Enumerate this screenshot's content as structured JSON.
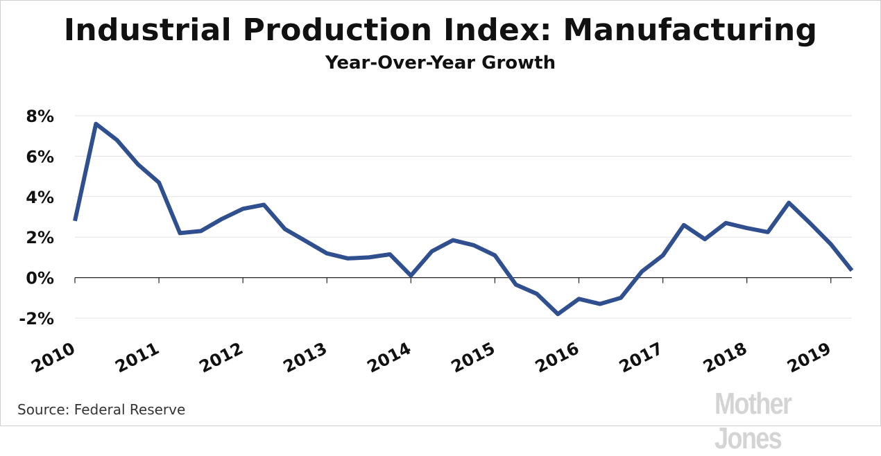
{
  "chart_data": {
    "type": "line",
    "title": "Industrial Production Index: Manufacturing",
    "subtitle": "Year-Over-Year Growth",
    "xlabel": "",
    "ylabel": "",
    "ylim": [
      -2,
      8
    ],
    "xlim": [
      2010.0,
      2019.25
    ],
    "y_ticks": [
      8,
      6,
      4,
      2,
      0,
      -2
    ],
    "y_tick_labels": [
      "8%",
      "6%",
      "4%",
      "2%",
      "0%",
      "-2%"
    ],
    "x_ticks": [
      2010,
      2011,
      2012,
      2013,
      2014,
      2015,
      2016,
      2017,
      2018,
      2019
    ],
    "x_tick_labels": [
      "2010",
      "2011",
      "2012",
      "2013",
      "2014",
      "2015",
      "2016",
      "2017",
      "2018",
      "2019"
    ],
    "grid": true,
    "series": [
      {
        "color": "#2f4f8f",
        "x": [
          2010.0,
          2010.25,
          2010.5,
          2010.75,
          2011.0,
          2011.25,
          2011.5,
          2011.75,
          2012.0,
          2012.25,
          2012.5,
          2012.75,
          2013.0,
          2013.25,
          2013.5,
          2013.75,
          2014.0,
          2014.25,
          2014.5,
          2014.75,
          2015.0,
          2015.25,
          2015.5,
          2015.75,
          2016.0,
          2016.25,
          2016.5,
          2016.75,
          2017.0,
          2017.25,
          2017.5,
          2017.75,
          2018.0,
          2018.25,
          2018.5,
          2018.75,
          2019.0,
          2019.25
        ],
        "y": [
          2.8,
          7.6,
          6.8,
          5.6,
          4.7,
          2.2,
          2.3,
          2.9,
          3.4,
          3.6,
          2.4,
          1.8,
          1.2,
          0.95,
          1.0,
          1.15,
          0.1,
          1.3,
          1.85,
          1.6,
          1.1,
          -0.35,
          -0.8,
          -1.8,
          -1.05,
          -1.3,
          -1.0,
          0.3,
          1.1,
          2.6,
          1.9,
          2.7,
          2.45,
          2.25,
          3.7,
          2.7,
          1.65,
          0.35
        ]
      }
    ]
  },
  "footer": {
    "source": "Source: Federal Reserve",
    "logo_text": "Mother Jones"
  }
}
